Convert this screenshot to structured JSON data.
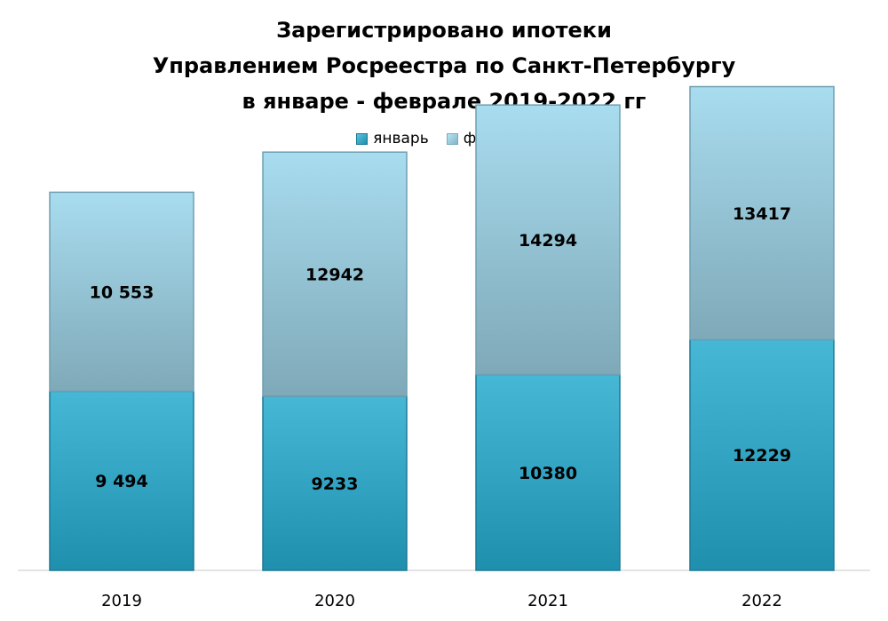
{
  "title": {
    "lines": [
      "Зарегистрировано ипотеки",
      "Управлением Росреестра по Санкт-Петербургу",
      "в январе - феврале 2019-2022 гг"
    ]
  },
  "legend": {
    "items": [
      {
        "label": "январь"
      },
      {
        "label": "февраль"
      }
    ]
  },
  "colors": {
    "january_top": "#46b8d6",
    "january_bottom": "#1f8fae",
    "february_top": "#a8dcef",
    "february_bottom": "#7fa9b8"
  },
  "chart_data": {
    "type": "bar",
    "stacked": true,
    "categories": [
      "2019",
      "2020",
      "2021",
      "2022"
    ],
    "series": [
      {
        "name": "январь",
        "values": [
          9494,
          9233,
          10380,
          12229
        ],
        "labels": [
          "9 494",
          "9233",
          "10380",
          "12229"
        ]
      },
      {
        "name": "февраль",
        "values": [
          10553,
          12942,
          14294,
          13417
        ],
        "labels": [
          "10 553",
          "12942",
          "14294",
          "13417"
        ]
      }
    ],
    "title": "Зарегистрировано ипотеки Управлением Росреестра по Санкт-Петербургу в январе - феврале 2019-2022 гг",
    "xlabel": "",
    "ylabel": "",
    "ylim": [
      0,
      26000
    ],
    "grid": false,
    "legend_position": "top"
  }
}
